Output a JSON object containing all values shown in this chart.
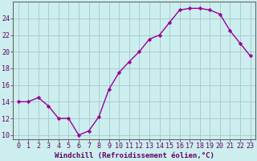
{
  "x": [
    0,
    1,
    2,
    3,
    4,
    5,
    6,
    7,
    8,
    9,
    10,
    11,
    12,
    13,
    14,
    15,
    16,
    17,
    18,
    19,
    20,
    21,
    22,
    23
  ],
  "y": [
    14,
    14,
    14.5,
    13.5,
    12,
    12,
    10,
    10.5,
    12.2,
    15.5,
    17.5,
    18.8,
    20,
    21.5,
    22,
    23.5,
    25,
    25.2,
    25.2,
    25,
    24.5,
    22.5,
    21,
    19.5
  ],
  "line_color": "#990099",
  "marker": "D",
  "markersize": 2.2,
  "linewidth": 1.0,
  "bg_color": "#cceeee",
  "grid_color": "#aacccc",
  "xlabel": "Windchill (Refroidissement éolien,°C)",
  "xlabel_fontsize": 6.5,
  "ylabel_ticks": [
    10,
    12,
    14,
    16,
    18,
    20,
    22,
    24
  ],
  "ylim": [
    9.5,
    26.0
  ],
  "xlim": [
    -0.5,
    23.5
  ],
  "tick_fontsize": 6.0
}
